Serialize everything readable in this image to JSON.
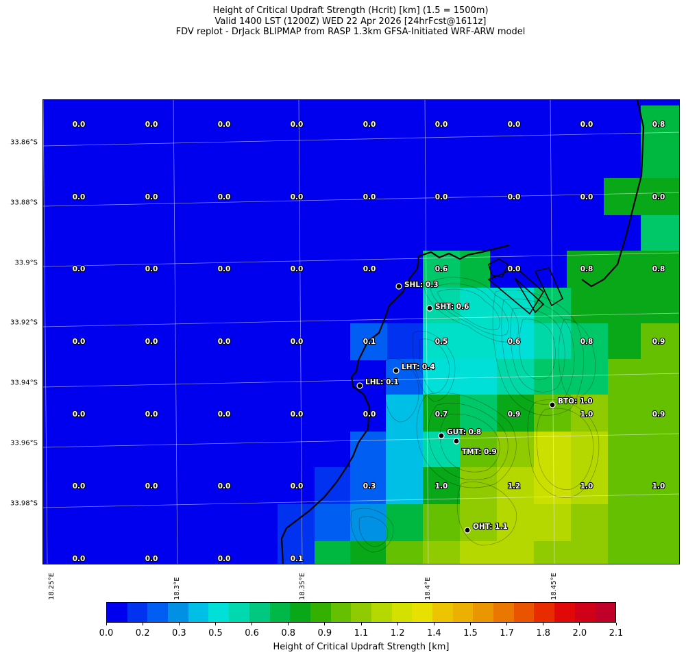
{
  "title": {
    "line1": "Height of Critical Updraft Strength (Hcrit) [km] (1.5 = 1500m)",
    "line2": "Valid 1400 LST (1200Z) WED 22 Apr 2026 [24hrFcst@1611z]",
    "line3": "FDV replot - DrJack BLIPMAP from RASP 1.3km GFSA-Initiated WRF-ARW model"
  },
  "axes": {
    "y_labels": [
      "33.86°S",
      "33.88°S",
      "33.9°S",
      "33.92°S",
      "33.94°S",
      "33.96°S",
      "33.98°S"
    ],
    "x_labels": [
      "18.25°E",
      "18.3°E",
      "18.35°E",
      "18.4°E",
      "18.45°E"
    ]
  },
  "grid_values": [
    [
      "0.0",
      "0.0",
      "0.0",
      "0.0",
      "0.0",
      "0.0",
      "0.0",
      "0.0",
      "0.8"
    ],
    [
      "0.0",
      "0.0",
      "0.0",
      "0.0",
      "0.0",
      "0.0",
      "0.0",
      "0.0",
      "0.0"
    ],
    [
      "0.0",
      "0.0",
      "0.0",
      "0.0",
      "0.0",
      "0.6",
      "0.0",
      "0.8",
      "0.8"
    ],
    [
      "0.0",
      "0.0",
      "0.0",
      "0.0",
      "0.1",
      "0.5",
      "0.6",
      "0.8",
      "0.9"
    ],
    [
      "0.0",
      "0.0",
      "0.0",
      "0.0",
      "0.0",
      "0.7",
      "0.9",
      "1.0",
      "0.9"
    ],
    [
      "0.0",
      "0.0",
      "0.0",
      "0.0",
      "0.3",
      "1.0",
      "1.2",
      "1.0",
      "1.0"
    ],
    [
      "0.0",
      "0.0",
      "0.0",
      "0.1",
      "",
      "",
      "",
      "",
      ""
    ]
  ],
  "stations": [
    {
      "label": "SHL: 0.3"
    },
    {
      "label": "SHT: 0.6"
    },
    {
      "label": "LHT: 0.4"
    },
    {
      "label": "LHL: 0.1"
    },
    {
      "label": "BTO: 1.0"
    },
    {
      "label": "GUT: 0.8"
    },
    {
      "label": "TMT: 0.9"
    },
    {
      "label": "OHT: 1.1"
    }
  ],
  "colorbar": {
    "title": "Height of Critical Updraft Strength [km]",
    "tick_labels": [
      "0.0",
      "0.2",
      "0.3",
      "0.5",
      "0.6",
      "0.8",
      "0.9",
      "1.1",
      "1.2",
      "1.4",
      "1.5",
      "1.7",
      "1.8",
      "2.0",
      "2.1"
    ],
    "colors": [
      "#0000ee",
      "#0032f0",
      "#005ff2",
      "#0090e4",
      "#00bfe6",
      "#00e0d8",
      "#00d8b0",
      "#00c880",
      "#00b848",
      "#08a818",
      "#34b000",
      "#64c000",
      "#90ca00",
      "#b4d800",
      "#d4e000",
      "#e8e000",
      "#ecc400",
      "#ecb000",
      "#ea9600",
      "#ea7800",
      "#ea5400",
      "#e82c00",
      "#e00808",
      "#d00018",
      "#c00028"
    ]
  },
  "colors": {
    "c0": "#0000ee",
    "c01": "#0032f0",
    "c02": "#005ff2",
    "c03": "#0090e4",
    "c035": "#00bfe6",
    "c04": "#00e0d8",
    "c05": "#00e0c8",
    "c06": "#00d8a8",
    "c07": "#00c868",
    "c075": "#00b840",
    "c08": "#08a818",
    "c09": "#64c000",
    "c10": "#90ca00",
    "c11": "#b4d800",
    "c12": "#cce000"
  }
}
